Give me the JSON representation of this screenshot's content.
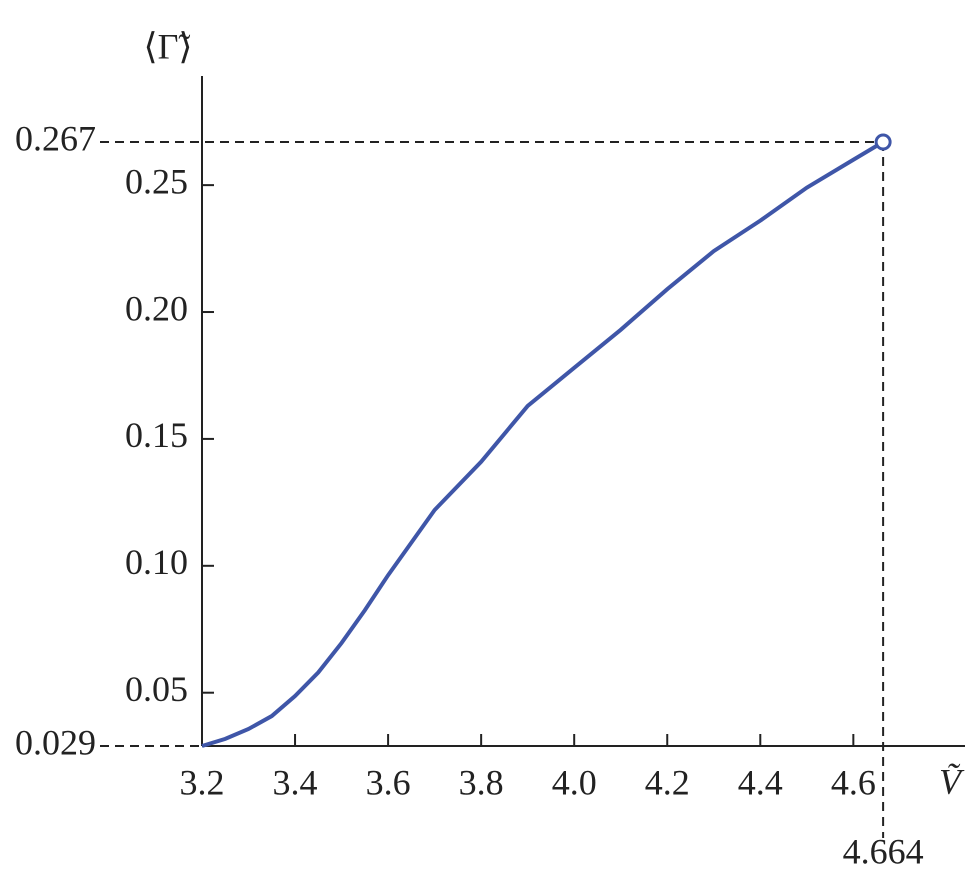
{
  "chart_data": {
    "type": "line",
    "xlabel": "Ṽ",
    "ylabel": "⟨Γ̃⟩",
    "x": [
      3.2,
      3.25,
      3.3,
      3.35,
      3.4,
      3.45,
      3.5,
      3.55,
      3.6,
      3.7,
      3.8,
      3.9,
      4.0,
      4.1,
      4.2,
      4.3,
      4.4,
      4.5,
      4.6,
      4.664
    ],
    "series": [
      {
        "color": "#3f56a8",
        "values": [
          0.029,
          0.0318,
          0.0357,
          0.0408,
          0.0487,
          0.058,
          0.0696,
          0.0825,
          0.0963,
          0.122,
          0.141,
          0.163,
          0.178,
          0.193,
          0.209,
          0.224,
          0.236,
          0.249,
          0.26,
          0.267
        ]
      }
    ],
    "xlim": [
      3.2,
      4.84
    ],
    "ylim": [
      0.029,
      0.293
    ],
    "xticks": [
      3.2,
      3.4,
      3.6,
      3.8,
      {
        "value": 4,
        "label": "4.0"
      },
      4.2,
      4.4,
      4.6
    ],
    "yticks": [
      0.05,
      {
        "value": 0.1,
        "label": "0.10"
      },
      0.15,
      {
        "value": 0.2,
        "label": "0.20"
      },
      0.25
    ],
    "marker": {
      "x": 4.664,
      "y": 0.267
    },
    "baseline": 0.029
  }
}
